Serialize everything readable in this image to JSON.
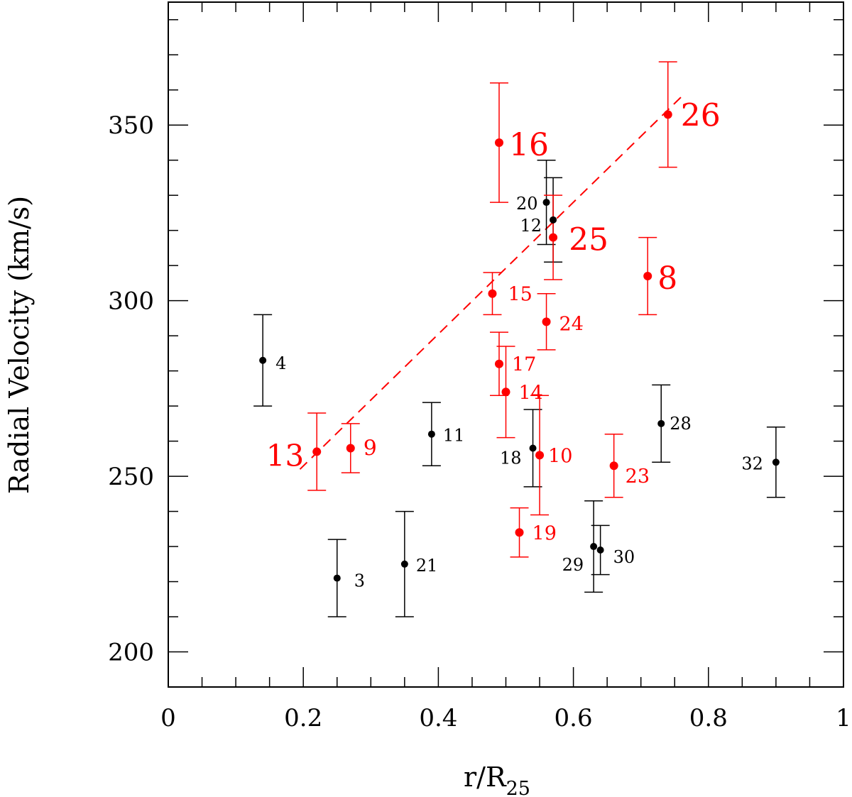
{
  "chart_data": {
    "type": "scatter",
    "title": "",
    "xlabel_main": "r/R",
    "xlabel_sub": "25",
    "ylabel": "Radial Velocity (km/s)",
    "xlim": [
      0,
      1
    ],
    "ylim": [
      190,
      385
    ],
    "x_ticks": [
      0,
      0.2,
      0.4,
      0.6,
      0.8,
      1
    ],
    "x_tick_labels": [
      "0",
      "0.2",
      "0.4",
      "0.6",
      "0.8",
      "1"
    ],
    "y_ticks": [
      200,
      250,
      300,
      350
    ],
    "y_tick_labels": [
      "200",
      "250",
      "300",
      "350"
    ],
    "x_minor_step": 0.05,
    "y_minor_step": 10,
    "grid": false,
    "colors": {
      "black": "#000000",
      "red": "#ff0000"
    },
    "fit_line": {
      "color": "#ff0000",
      "style": "dashed",
      "x": [
        0.195,
        0.765
      ],
      "y": [
        252,
        359
      ]
    },
    "series": [
      {
        "color": "#000000",
        "points": [
          {
            "label": "4",
            "x": 0.14,
            "y": 283,
            "err": 13
          },
          {
            "label": "3",
            "x": 0.25,
            "y": 221,
            "err": 11
          },
          {
            "label": "21",
            "x": 0.35,
            "y": 225,
            "err": 15
          },
          {
            "label": "11",
            "x": 0.39,
            "y": 262,
            "err": 9
          },
          {
            "label": "18",
            "x": 0.54,
            "y": 258,
            "err": 11
          },
          {
            "label": "20",
            "x": 0.56,
            "y": 328,
            "err": 12
          },
          {
            "label": "12",
            "x": 0.57,
            "y": 323,
            "err": 12
          },
          {
            "label": "29",
            "x": 0.63,
            "y": 230,
            "err": 13
          },
          {
            "label": "30",
            "x": 0.64,
            "y": 229,
            "err": 7
          },
          {
            "label": "28",
            "x": 0.73,
            "y": 265,
            "err": 11
          },
          {
            "label": "32",
            "x": 0.9,
            "y": 254,
            "err": 10
          }
        ]
      },
      {
        "color": "#ff0000",
        "points": [
          {
            "label": "13",
            "x": 0.22,
            "y": 257,
            "err": 11
          },
          {
            "label": "9",
            "x": 0.27,
            "y": 258,
            "err": 7
          },
          {
            "label": "15",
            "x": 0.48,
            "y": 302,
            "err": 6
          },
          {
            "label": "16",
            "x": 0.49,
            "y": 345,
            "err": 17
          },
          {
            "label": "17",
            "x": 0.49,
            "y": 282,
            "err": 9
          },
          {
            "label": "14",
            "x": 0.5,
            "y": 274,
            "err": 13
          },
          {
            "label": "19",
            "x": 0.52,
            "y": 234,
            "err": 7
          },
          {
            "label": "10",
            "x": 0.55,
            "y": 256,
            "err": 17
          },
          {
            "label": "24",
            "x": 0.56,
            "y": 294,
            "err": 8
          },
          {
            "label": "25",
            "x": 0.57,
            "y": 318,
            "err": 12
          },
          {
            "label": "23",
            "x": 0.66,
            "y": 253,
            "err": 9
          },
          {
            "label": "8",
            "x": 0.71,
            "y": 307,
            "err": 11
          },
          {
            "label": "26",
            "x": 0.74,
            "y": 353,
            "err": 15
          }
        ]
      }
    ]
  }
}
